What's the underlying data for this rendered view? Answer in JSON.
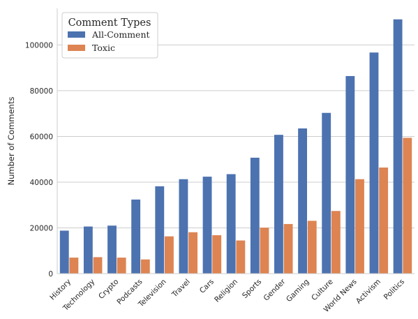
{
  "chart_data": {
    "type": "bar",
    "categories": [
      "History",
      "Technology",
      "Crypto",
      "Podcasts",
      "Television",
      "Travel",
      "Cars",
      "Religion",
      "Sports",
      "Gender",
      "Gaming",
      "Culture",
      "World News",
      "Activism",
      "Politics"
    ],
    "series": [
      {
        "name": "All-Comment",
        "color": "#4c72b0",
        "values": [
          18800,
          20600,
          21000,
          32400,
          38200,
          41300,
          42400,
          43500,
          50700,
          60700,
          63500,
          70300,
          86400,
          96700,
          111200
        ]
      },
      {
        "name": "Toxic",
        "color": "#dd8452",
        "values": [
          7000,
          7200,
          7000,
          6200,
          16300,
          18100,
          16800,
          14500,
          20100,
          21700,
          23100,
          27400,
          41300,
          46400,
          59400
        ]
      }
    ],
    "title": "",
    "xlabel": "",
    "ylabel": "Number of Comments",
    "ylim": [
      0,
      116000
    ],
    "yticks": [
      0,
      20000,
      40000,
      60000,
      80000,
      100000
    ],
    "grid": true,
    "legend": {
      "title": "Comment Types",
      "placement": "top-left"
    }
  }
}
